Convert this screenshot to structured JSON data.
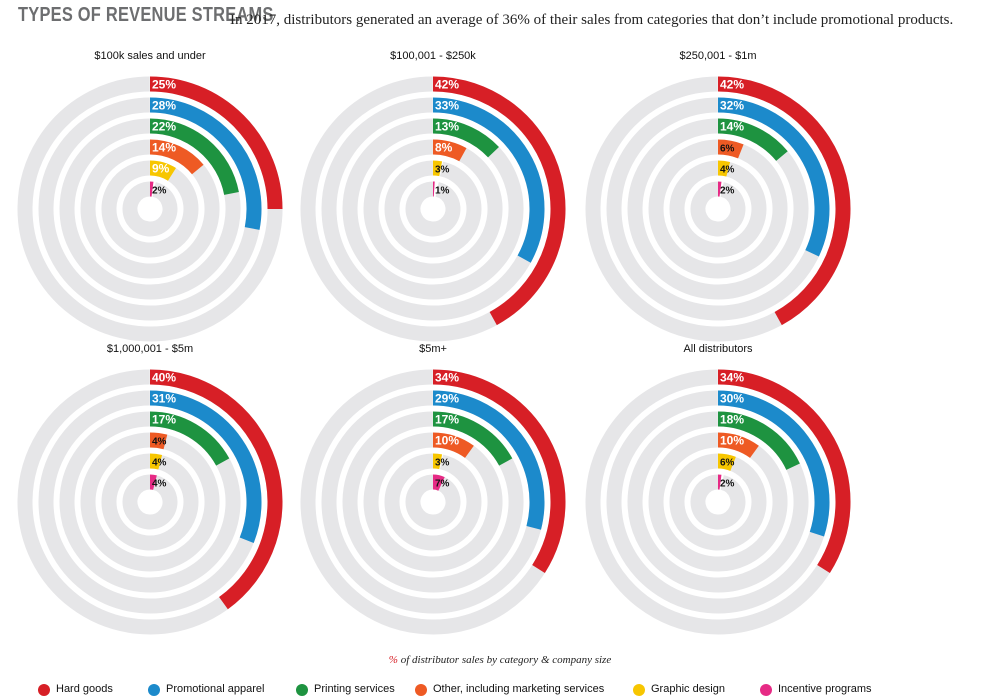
{
  "header": {
    "title": "TYPES OF REVENUE STREAMS",
    "subtitle": "In 2017, distributors generated an average of 36% of their sales from categories that don’t include promotional products."
  },
  "caption": {
    "pct_symbol": "%",
    "text": " of distributor sales by category & company size"
  },
  "colors": {
    "track": "#e6e6e8",
    "Hard goods": "#d71f26",
    "Promotional apparel": "#1c8acb",
    "Printing services": "#1e9340",
    "Other, including marketing services": "#ee5a24",
    "Graphic design": "#f7c600",
    "Incentive programs": "#e62a85"
  },
  "chart_data": [
    {
      "type": "radial-bar",
      "title": "$100k sales and under",
      "categories": [
        "Hard goods",
        "Promotional apparel",
        "Printing services",
        "Other, including marketing services",
        "Graphic design",
        "Incentive programs"
      ],
      "values": [
        25,
        28,
        22,
        14,
        9,
        2
      ],
      "labels": [
        "25%",
        "28%",
        "22%",
        "14%",
        "9%",
        "2%"
      ]
    },
    {
      "type": "radial-bar",
      "title": "$100,001 - $250k",
      "categories": [
        "Hard goods",
        "Promotional apparel",
        "Printing services",
        "Other, including marketing services",
        "Graphic design",
        "Incentive programs"
      ],
      "values": [
        42,
        33,
        13,
        8,
        3,
        1
      ],
      "labels": [
        "42%",
        "33%",
        "13%",
        "8%",
        "3%",
        "1%"
      ]
    },
    {
      "type": "radial-bar",
      "title": "$250,001 - $1m",
      "categories": [
        "Hard goods",
        "Promotional apparel",
        "Printing services",
        "Other, including marketing services",
        "Graphic design",
        "Incentive programs"
      ],
      "values": [
        42,
        32,
        14,
        6,
        4,
        2
      ],
      "labels": [
        "42%",
        "32%",
        "14%",
        "6%",
        "4%",
        "2%"
      ]
    },
    {
      "type": "radial-bar",
      "title": "$1,000,001 - $5m",
      "categories": [
        "Hard goods",
        "Promotional apparel",
        "Printing services",
        "Other, including marketing services",
        "Graphic design",
        "Incentive programs"
      ],
      "values": [
        40,
        31,
        17,
        4,
        4,
        4
      ],
      "labels": [
        "40%",
        "31%",
        "17%",
        "4%",
        "4%",
        "4%"
      ]
    },
    {
      "type": "radial-bar",
      "title": "$5m+",
      "categories": [
        "Hard goods",
        "Promotional apparel",
        "Printing services",
        "Other, including marketing services",
        "Graphic design",
        "Incentive programs"
      ],
      "values": [
        34,
        29,
        17,
        10,
        3,
        7
      ],
      "labels": [
        "34%",
        "29%",
        "17%",
        "10%",
        "3%",
        "7%"
      ]
    },
    {
      "type": "radial-bar",
      "title": "All distributors",
      "categories": [
        "Hard goods",
        "Promotional apparel",
        "Printing services",
        "Other, including marketing services",
        "Graphic design",
        "Incentive programs"
      ],
      "values": [
        34,
        30,
        18,
        10,
        6,
        2
      ],
      "labels": [
        "34%",
        "30%",
        "18%",
        "10%",
        "6%",
        "2%"
      ]
    }
  ],
  "legend": {
    "items": [
      {
        "label": "Hard goods",
        "color": "#d71f26"
      },
      {
        "label": "Promotional apparel",
        "color": "#1c8acb"
      },
      {
        "label": "Printing services",
        "color": "#1e9340"
      },
      {
        "label": "Other, including marketing services",
        "color": "#ee5a24"
      },
      {
        "label": "Graphic design",
        "color": "#f7c600"
      },
      {
        "label": "Incentive programs",
        "color": "#e62a85"
      }
    ]
  }
}
